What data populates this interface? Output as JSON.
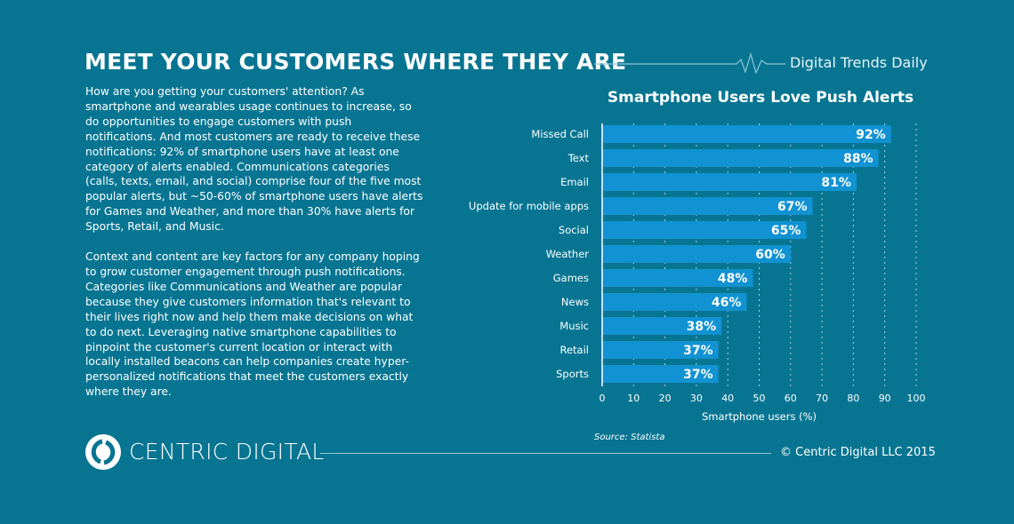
{
  "header": {
    "title": "MEET YOUR CUSTOMERS WHERE THEY ARE",
    "brand": "Digital Trends Daily"
  },
  "body": {
    "paragraphs": [
      "How are you getting your customers' attention? As smartphone and wearables usage continues to increase, so do opportunities to engage customers with push notifications. And most customers are ready to receive these notifications: 92% of smartphone users have at least one category of alerts enabled. Communications categories (calls, texts, email, and social) comprise four of the five most popular alerts, but ~50-60% of smartphone users have alerts for Games and Weather, and more than 30% have alerts for Sports, Retail, and Music.",
      "Context and content are key factors for any company hoping to grow customer engagement through push notifications. Categories like Communications and Weather are popular because they give customers information that's relevant to their lives right now and help them make decisions on what to do next. Leveraging native smartphone capabilities to pinpoint the customer's current location or interact with locally installed beacons can help companies create hyper-personalized notifications that meet the customers exactly where they are."
    ]
  },
  "chart_data": {
    "type": "bar",
    "orientation": "horizontal",
    "title": "Smartphone Users Love Push Alerts",
    "categories": [
      "Missed Call",
      "Text",
      "Email",
      "Update for mobile apps",
      "Social",
      "Weather",
      "Games",
      "News",
      "Music",
      "Retail",
      "Sports"
    ],
    "values": [
      92,
      88,
      81,
      67,
      65,
      60,
      48,
      46,
      38,
      37,
      37
    ],
    "value_labels": [
      "92%",
      "88%",
      "81%",
      "67%",
      "65%",
      "60%",
      "48%",
      "46%",
      "38%",
      "37%",
      "37%"
    ],
    "xlabel": "Smartphone users (%)",
    "xlim": [
      0,
      100
    ],
    "xticks": [
      "0",
      "10",
      "20",
      "30",
      "40",
      "50",
      "60",
      "70",
      "80",
      "90",
      "100"
    ],
    "grid": "vertical dotted",
    "bar_color": "#1192d2",
    "source": "Source: Statista"
  },
  "footer": {
    "logo_text": "CENTRIC DIGITAL",
    "copyright": "© Centric Digital LLC 2015"
  },
  "colors": {
    "background": "#077592",
    "bar": "#1192d2",
    "line": "#8fc6d8"
  }
}
